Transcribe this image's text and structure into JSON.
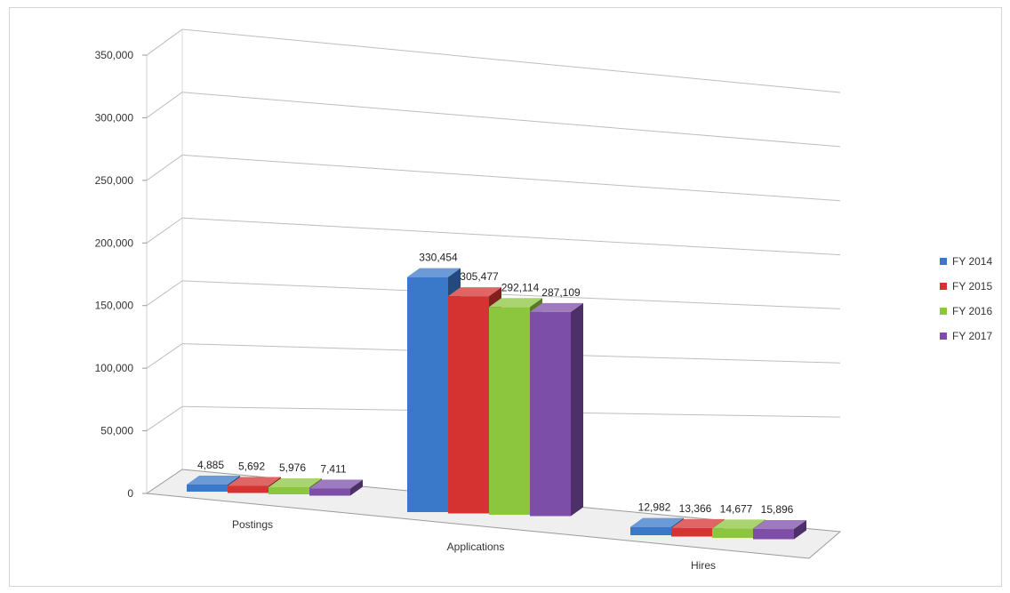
{
  "chart_data": {
    "type": "bar",
    "categories": [
      "Postings",
      "Applications",
      "Hires"
    ],
    "series": [
      {
        "name": "FY 2014",
        "values": [
          4885,
          330454,
          12982
        ],
        "labels": [
          "4,885",
          "330,454",
          "12,982"
        ],
        "color": "#3a78c9"
      },
      {
        "name": "FY 2015",
        "values": [
          5692,
          305477,
          13366
        ],
        "labels": [
          "5,692",
          "305,477",
          "13,366"
        ],
        "color": "#d53232"
      },
      {
        "name": "FY 2016",
        "values": [
          5976,
          292114,
          14677
        ],
        "labels": [
          "5,976",
          "292,114",
          "14,677"
        ],
        "color": "#8cc63f"
      },
      {
        "name": "FY 2017",
        "values": [
          7411,
          287109,
          15896
        ],
        "labels": [
          "7,411",
          "287,109",
          "15,896"
        ],
        "color": "#7d4ea8"
      }
    ],
    "y_ticks": [
      "0",
      "50,000",
      "100,000",
      "150,000",
      "200,000",
      "250,000",
      "300,000",
      "350,000"
    ],
    "ylim": [
      0,
      350000
    ],
    "title": "",
    "xlabel": "",
    "ylabel": "",
    "grid": true,
    "legend_position": "right",
    "view": "3d-perspective"
  }
}
